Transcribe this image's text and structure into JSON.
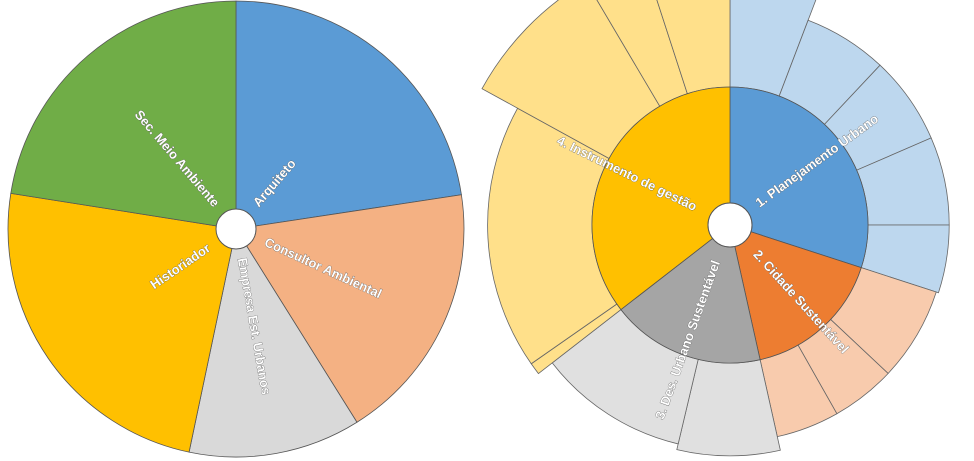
{
  "chart_data": [
    {
      "type": "pie",
      "title": "",
      "slices": [
        {
          "label": "Arquiteto",
          "value": 22.6,
          "color": "#5b9bd5"
        },
        {
          "label": "Consultor Ambiental",
          "value": 18.5,
          "color": "#f4b183"
        },
        {
          "label": "Empresa Est. Urbanos",
          "value": 12.2,
          "color": "#d9d9d9"
        },
        {
          "label": "Historiador",
          "value": 24.2,
          "color": "#ffc000"
        },
        {
          "label": "Sec. Meio Ambiente",
          "value": 22.5,
          "color": "#70ad47"
        }
      ]
    },
    {
      "type": "sunburst",
      "title": "",
      "categories": [
        {
          "label": "1. Planejamento Urbano",
          "value": 30,
          "color": "#5b9bd5",
          "child_color": "#bdd7ee",
          "children": [
            {
              "value": 5.8,
              "radius": 1.95
            },
            {
              "value": 6.2,
              "radius": 1.7
            },
            {
              "value": 6.5,
              "radius": 1.7
            },
            {
              "value": 6.5,
              "radius": 1.7
            },
            {
              "value": 5.0,
              "radius": 1.7
            }
          ]
        },
        {
          "label": "2. Cidade Sustentável",
          "value": 16.5,
          "color": "#ed7d31",
          "child_color": "#f8cbad",
          "children": [
            {
              "value": 7.0,
              "radius": 1.68
            },
            {
              "value": 4.8,
              "radius": 1.68
            },
            {
              "value": 4.7,
              "radius": 1.68
            }
          ]
        },
        {
          "label": "3. Des. Urbano Sustentável",
          "value": 18.0,
          "color": "#a5a5a5",
          "child_color": "#e0e0e0",
          "children": [
            {
              "value": 7.2,
              "radius": 1.8
            },
            {
              "value": 10.8,
              "radius": 1.75
            }
          ]
        },
        {
          "label": "4. Instrumento de gestão",
          "value": 35.5,
          "color": "#ffc000",
          "child_color": "#ffe08a",
          "children": [
            {
              "value": 0.8,
              "radius": 1.9
            },
            {
              "value": 17.7,
              "radius": 1.9
            },
            {
              "value": 8.5,
              "radius": 2.25
            },
            {
              "value": 3.5,
              "radius": 2.3
            },
            {
              "value": 5.0,
              "radius": 2.25
            }
          ]
        }
      ]
    }
  ]
}
